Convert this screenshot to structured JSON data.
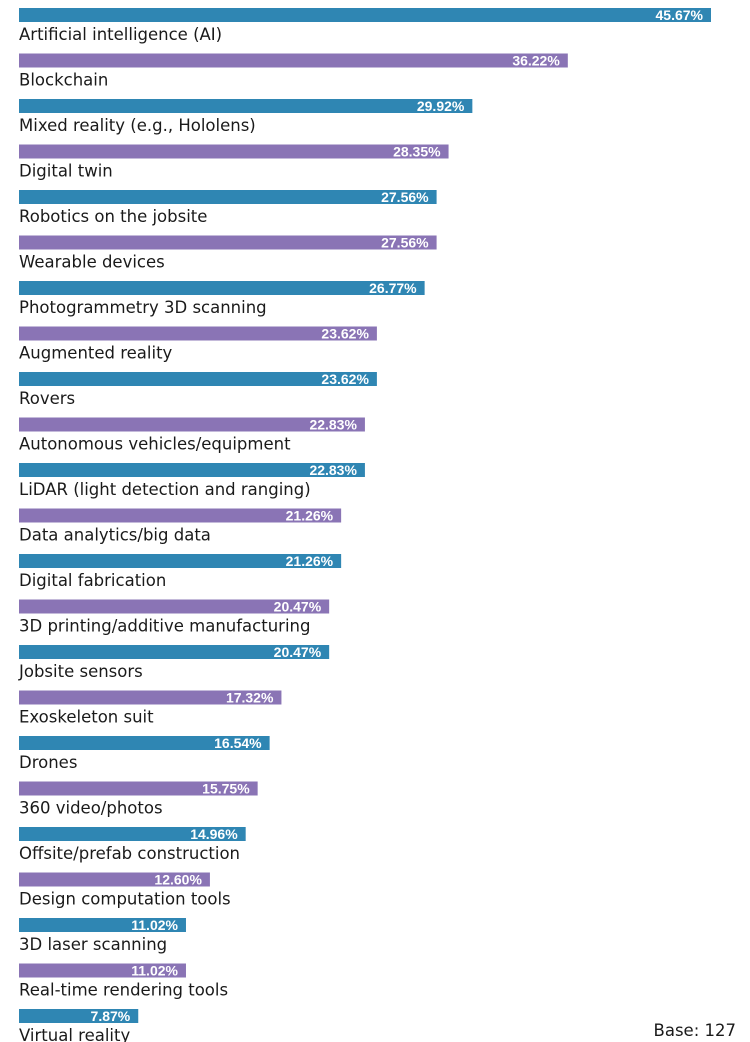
{
  "chart_data": {
    "type": "bar",
    "orientation": "horizontal",
    "value_unit": "%",
    "categories": [
      "Artificial intelligence (AI)",
      "Blockchain",
      "Mixed reality (e.g., Hololens)",
      "Digital twin",
      "Robotics on the jobsite",
      "Wearable devices",
      "Photogrammetry 3D scanning",
      "Augmented reality",
      "Rovers",
      "Autonomous vehicles/equipment",
      "LiDAR (light detection and ranging)",
      "Data analytics/big data",
      "Digital fabrication",
      "3D printing/additive manufacturing",
      "Jobsite sensors",
      "Exoskeleton suit",
      "Drones",
      "360 video/photos",
      "Offsite/prefab construction",
      "Design computation tools",
      "3D laser scanning",
      "Real-time rendering tools",
      "Virtual reality"
    ],
    "values": [
      45.67,
      36.22,
      29.92,
      28.35,
      27.56,
      27.56,
      26.77,
      23.62,
      23.62,
      22.83,
      22.83,
      21.26,
      21.26,
      20.47,
      20.47,
      17.32,
      16.54,
      15.75,
      14.96,
      12.6,
      11.02,
      11.02,
      7.87
    ],
    "value_labels": [
      "45.67%",
      "36.22%",
      "29.92%",
      "28.35%",
      "27.56%",
      "27.56%",
      "26.77%",
      "23.62%",
      "23.62%",
      "22.83%",
      "22.83%",
      "21.26%",
      "21.26%",
      "20.47%",
      "20.47%",
      "17.32%",
      "16.54%",
      "15.75%",
      "14.96%",
      "12.60%",
      "11.02%",
      "11.02%",
      "7.87%"
    ],
    "bar_colors": [
      "#2f86b3",
      "#8a74b5"
    ],
    "xlim": [
      0,
      45.67
    ],
    "grid": false,
    "legend": "none",
    "note": "Base: 127"
  }
}
